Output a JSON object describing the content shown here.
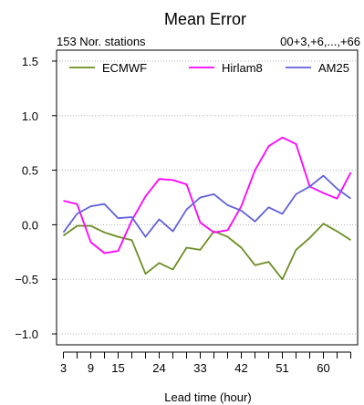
{
  "chart_data": {
    "type": "line",
    "title": "Mean Error",
    "subtitle_left": "153 Nor. stations",
    "subtitle_right": "00+3,+6,...,+66",
    "xlabel": "Lead time (hour)",
    "ylabel": "",
    "x": [
      3,
      6,
      9,
      12,
      15,
      18,
      21,
      24,
      27,
      30,
      33,
      36,
      39,
      42,
      45,
      48,
      51,
      54,
      57,
      60,
      63,
      66
    ],
    "x_ticks": [
      3,
      9,
      15,
      24,
      33,
      42,
      51,
      60
    ],
    "x_tick_marks": [
      3,
      6,
      9,
      12,
      15,
      18,
      21,
      24,
      27,
      30,
      33,
      36,
      39,
      42,
      45,
      48,
      51,
      54,
      57,
      60,
      63,
      66
    ],
    "y_ticks": [
      1.5,
      1.0,
      0.5,
      0.0,
      -0.5,
      -1.0
    ],
    "y_tick_labels": [
      "1.5",
      "1.0",
      "0.5",
      "0.0",
      "−0.5",
      "−1.0"
    ],
    "ylim": [
      -1.1,
      1.6
    ],
    "grid": true,
    "legend_position": "top",
    "series": [
      {
        "name": "ECMWF",
        "color": "#6b8e23",
        "values": [
          -0.1,
          -0.01,
          -0.01,
          -0.07,
          -0.11,
          -0.14,
          -0.45,
          -0.35,
          -0.41,
          -0.21,
          -0.23,
          -0.06,
          -0.11,
          -0.21,
          -0.37,
          -0.34,
          -0.5,
          -0.23,
          -0.12,
          0.01,
          -0.06,
          -0.14
        ]
      },
      {
        "name": "Hirlam8",
        "color": "#ff00ff",
        "values": [
          0.22,
          0.19,
          -0.16,
          -0.26,
          -0.24,
          0.04,
          0.26,
          0.42,
          0.41,
          0.37,
          0.02,
          -0.07,
          -0.05,
          0.17,
          0.5,
          0.72,
          0.8,
          0.74,
          0.35,
          0.29,
          0.24,
          0.48
        ]
      },
      {
        "name": "AM25",
        "color": "#6060dd",
        "values": [
          -0.07,
          0.1,
          0.17,
          0.19,
          0.06,
          0.07,
          -0.11,
          0.05,
          -0.06,
          0.14,
          0.25,
          0.28,
          0.18,
          0.13,
          0.03,
          0.16,
          0.1,
          0.28,
          0.35,
          0.45,
          0.33,
          0.24
        ]
      }
    ]
  }
}
